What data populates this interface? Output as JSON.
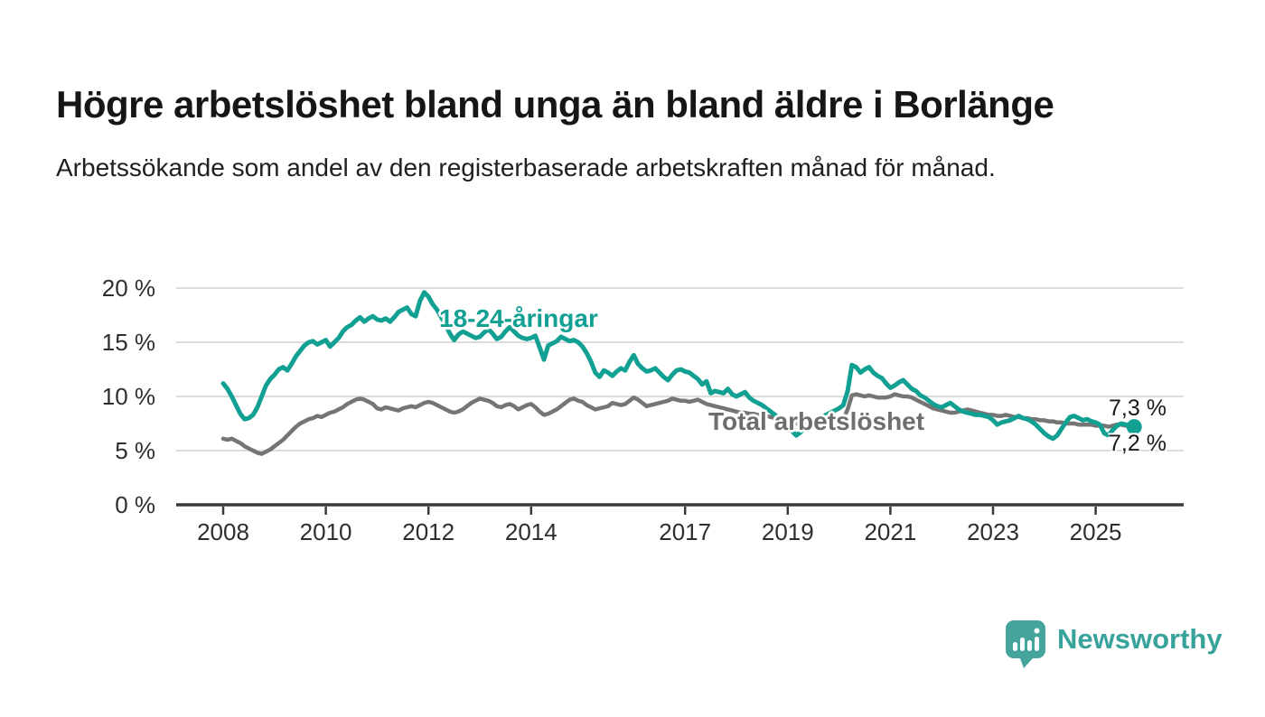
{
  "header": {
    "title": "Högre arbetslöshet bland unga än bland äldre i Borlänge",
    "subtitle": "Arbetssökande som andel av den registerbaserade arbetskraften månad för månad."
  },
  "footer": {
    "brand": "Newsworthy",
    "logo_icon": "newsworthy-speech-bubble-bar-chart-icon",
    "brand_color": "#45a49c"
  },
  "colors": {
    "youth_line": "#12a093",
    "total_line": "#757575",
    "total_label": "#6e6e6e",
    "grid": "#dcdcdc",
    "axis": "#3a3a3a",
    "value_label": "#1a1a1a"
  },
  "chart_data": {
    "type": "line",
    "unit": "%",
    "grid": "horizontal",
    "legend_position": "inline-labels",
    "x_range": [
      2007.1,
      2026.7
    ],
    "y_range": [
      0,
      21
    ],
    "x_ticks": [
      {
        "value": 2008,
        "label": "2008"
      },
      {
        "value": 2010,
        "label": "2010"
      },
      {
        "value": 2012,
        "label": "2012"
      },
      {
        "value": 2014,
        "label": "2014"
      },
      {
        "value": 2017,
        "label": "2017"
      },
      {
        "value": 2019,
        "label": "2019"
      },
      {
        "value": 2021,
        "label": "2021"
      },
      {
        "value": 2023,
        "label": "2023"
      },
      {
        "value": 2025,
        "label": "2025"
      }
    ],
    "y_ticks": [
      {
        "value": 0,
        "label": "0 %"
      },
      {
        "value": 5,
        "label": "5 %"
      },
      {
        "value": 10,
        "label": "10 %"
      },
      {
        "value": 15,
        "label": "15 %"
      },
      {
        "value": 20,
        "label": "20 %"
      }
    ],
    "series": [
      {
        "name": "Total arbetslöshet",
        "color": "#757575",
        "start_year": 2008.0,
        "interval_months": 1,
        "end_label": "7,3 %",
        "end_dot": false,
        "values": [
          6.1,
          6.0,
          6.1,
          5.9,
          5.7,
          5.4,
          5.2,
          5.0,
          4.8,
          4.7,
          4.9,
          5.1,
          5.4,
          5.7,
          6.0,
          6.4,
          6.8,
          7.2,
          7.5,
          7.7,
          7.9,
          8.0,
          8.2,
          8.1,
          8.3,
          8.5,
          8.6,
          8.8,
          9.0,
          9.3,
          9.5,
          9.7,
          9.8,
          9.7,
          9.5,
          9.3,
          8.9,
          8.8,
          9.0,
          8.9,
          8.8,
          8.7,
          8.9,
          9.0,
          9.1,
          9.0,
          9.2,
          9.4,
          9.5,
          9.4,
          9.2,
          9.0,
          8.8,
          8.6,
          8.5,
          8.6,
          8.8,
          9.1,
          9.4,
          9.6,
          9.8,
          9.7,
          9.6,
          9.4,
          9.1,
          9.0,
          9.2,
          9.3,
          9.1,
          8.8,
          9.0,
          9.2,
          9.3,
          9.0,
          8.6,
          8.3,
          8.4,
          8.6,
          8.8,
          9.1,
          9.4,
          9.7,
          9.8,
          9.6,
          9.5,
          9.2,
          9.0,
          8.8,
          8.9,
          9.0,
          9.1,
          9.4,
          9.3,
          9.2,
          9.3,
          9.6,
          9.9,
          9.7,
          9.4,
          9.1,
          9.2,
          9.3,
          9.4,
          9.5,
          9.6,
          9.8,
          9.7,
          9.6,
          9.6,
          9.5,
          9.6,
          9.7,
          9.5,
          9.3,
          9.2,
          9.1,
          9.0,
          8.9,
          8.8,
          8.7,
          8.6,
          8.5,
          8.5,
          8.4,
          8.4,
          8.3,
          8.3,
          8.2,
          8.1,
          8.0,
          7.9,
          7.8,
          7.7,
          7.6,
          7.5,
          7.4,
          7.4,
          7.4,
          7.4,
          7.5,
          7.5,
          7.6,
          7.6,
          7.7,
          7.7,
          7.9,
          8.8,
          10.1,
          10.2,
          10.1,
          10.0,
          10.1,
          10.0,
          9.9,
          9.9,
          9.9,
          10.0,
          10.2,
          10.1,
          10.0,
          10.0,
          9.9,
          9.7,
          9.5,
          9.3,
          9.1,
          8.9,
          8.8,
          8.7,
          8.6,
          8.5,
          8.5,
          8.6,
          8.7,
          8.8,
          8.7,
          8.6,
          8.5,
          8.4,
          8.3,
          8.3,
          8.2,
          8.2,
          8.3,
          8.2,
          8.1,
          8.1,
          8.0,
          8.0,
          7.9,
          7.9,
          7.8,
          7.8,
          7.7,
          7.7,
          7.6,
          7.6,
          7.5,
          7.5,
          7.5,
          7.4,
          7.4,
          7.4,
          7.4,
          7.3,
          7.3,
          7.3,
          7.2,
          7.3,
          7.4,
          7.4,
          7.3,
          7.3,
          7.3
        ]
      },
      {
        "name": "18-24-åringar",
        "color": "#12a093",
        "start_year": 2008.0,
        "interval_months": 1,
        "end_label": "7,2 %",
        "end_dot": true,
        "values": [
          11.2,
          10.7,
          10.0,
          9.2,
          8.4,
          7.9,
          8.0,
          8.3,
          9.0,
          10.0,
          11.0,
          11.6,
          12.0,
          12.5,
          12.7,
          12.4,
          13.0,
          13.7,
          14.2,
          14.7,
          15.0,
          15.1,
          14.8,
          15.0,
          15.2,
          14.6,
          15.0,
          15.4,
          16.0,
          16.4,
          16.6,
          17.0,
          17.3,
          16.9,
          17.2,
          17.4,
          17.1,
          17.0,
          17.2,
          16.9,
          17.3,
          17.8,
          18.0,
          18.2,
          17.6,
          17.4,
          18.8,
          19.6,
          19.2,
          18.5,
          18.0,
          17.3,
          16.6,
          15.8,
          15.2,
          15.7,
          16.0,
          15.8,
          15.6,
          15.4,
          15.5,
          15.9,
          16.2,
          15.8,
          15.3,
          15.5,
          16.0,
          16.4,
          16.0,
          15.6,
          15.4,
          15.3,
          15.4,
          15.6,
          14.5,
          13.4,
          14.7,
          14.9,
          15.1,
          15.5,
          15.3,
          15.1,
          15.2,
          15.0,
          14.6,
          14.0,
          13.2,
          12.2,
          11.8,
          12.4,
          12.2,
          11.9,
          12.3,
          12.6,
          12.4,
          13.2,
          13.8,
          13.0,
          12.6,
          12.3,
          12.4,
          12.6,
          12.2,
          11.8,
          11.5,
          12.0,
          12.4,
          12.5,
          12.3,
          12.2,
          11.9,
          11.6,
          11.1,
          11.4,
          10.3,
          10.5,
          10.4,
          10.3,
          10.7,
          10.2,
          10.0,
          10.2,
          10.4,
          9.9,
          9.6,
          9.4,
          9.2,
          8.9,
          8.6,
          8.3,
          8.0,
          7.6,
          7.2,
          6.8,
          6.4,
          6.7,
          7.1,
          7.4,
          7.7,
          7.9,
          8.1,
          8.3,
          8.5,
          8.7,
          8.9,
          9.2,
          10.5,
          12.9,
          12.7,
          12.2,
          12.5,
          12.7,
          12.2,
          11.9,
          11.7,
          11.2,
          10.8,
          11.0,
          11.3,
          11.5,
          11.1,
          10.7,
          10.5,
          10.1,
          9.9,
          9.6,
          9.3,
          9.1,
          9.0,
          9.2,
          9.4,
          9.1,
          8.8,
          8.6,
          8.5,
          8.4,
          8.3,
          8.3,
          8.2,
          8.1,
          7.8,
          7.4,
          7.6,
          7.7,
          7.8,
          8.0,
          8.2,
          8.0,
          7.9,
          7.7,
          7.4,
          7.0,
          6.6,
          6.3,
          6.1,
          6.4,
          7.0,
          7.6,
          8.1,
          8.2,
          8.0,
          7.8,
          7.9,
          7.7,
          7.6,
          7.4,
          6.6,
          6.4,
          6.9,
          7.3,
          7.5,
          7.4,
          7.3,
          7.2
        ]
      }
    ]
  }
}
